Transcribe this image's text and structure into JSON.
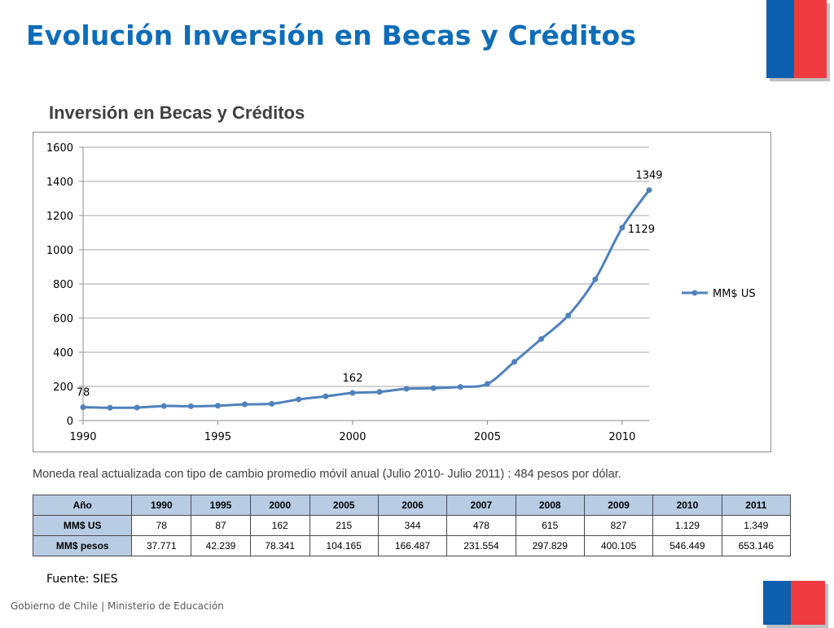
{
  "slide": {
    "title": "Evolución Inversión en Becas y Créditos",
    "note": "Moneda real  actualizada  con  tipo de cambio promedio  móvil  anual (Julio 2010- Julio 2011) :  484 pesos por dólar.",
    "source": "Fuente: SIES",
    "footer": "Gobierno de Chile | Ministerio de Educación"
  },
  "colors": {
    "title": "#0f6db7",
    "line": "#4f81bd",
    "flag_blue": "#0d5fb0",
    "flag_red": "#ef3b3f",
    "table_header": "#b8cce4"
  },
  "chart_data": {
    "type": "line",
    "title": "Inversión en Becas y Créditos",
    "xlabel": "",
    "ylabel": "",
    "xlim": [
      1990,
      2011
    ],
    "ylim": [
      0,
      1600
    ],
    "yticks": [
      0,
      200,
      400,
      600,
      800,
      1000,
      1200,
      1400,
      1600
    ],
    "xticks": [
      1990,
      1995,
      2000,
      2005,
      2010
    ],
    "grid": true,
    "legend_position": "right",
    "series": [
      {
        "name": "MM$ US",
        "x": [
          1990,
          1991,
          1992,
          1993,
          1994,
          1995,
          1996,
          1997,
          1998,
          1999,
          2000,
          2001,
          2002,
          2003,
          2004,
          2005,
          2006,
          2007,
          2008,
          2009,
          2010,
          2011
        ],
        "values": [
          78,
          75,
          76,
          85,
          84,
          87,
          95,
          98,
          124,
          142,
          162,
          168,
          186,
          190,
          197,
          215,
          344,
          478,
          615,
          827,
          1129,
          1349
        ]
      }
    ],
    "data_labels": [
      {
        "x": 1990,
        "text": "78",
        "pos": "above"
      },
      {
        "x": 2000,
        "text": "162",
        "pos": "above"
      },
      {
        "x": 2010,
        "text": "1129",
        "pos": "right"
      },
      {
        "x": 2011,
        "text": "1349",
        "pos": "above"
      }
    ]
  },
  "table": {
    "header": [
      "Año",
      "1990",
      "1995",
      "2000",
      "2005",
      "2006",
      "2007",
      "2008",
      "2009",
      "2010",
      "2011"
    ],
    "rows": [
      [
        "MM$ US",
        "78",
        "87",
        "162",
        "215",
        "344",
        "478",
        "615",
        "827",
        "1.129",
        "1.349"
      ],
      [
        "MM$ pesos",
        "37.771",
        "42.239",
        "78.341",
        "104.165",
        "166.487",
        "231.554",
        "297.829",
        "400.105",
        "546.449",
        "653.146"
      ]
    ]
  }
}
